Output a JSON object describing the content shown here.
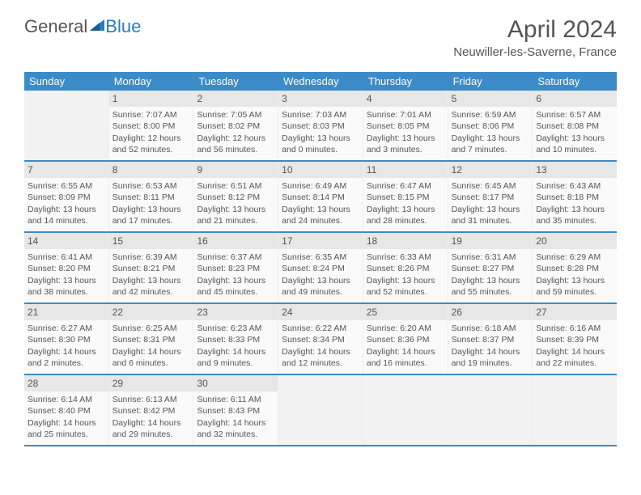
{
  "logo": {
    "text_general": "General",
    "text_blue": "Blue"
  },
  "title": "April 2024",
  "location": "Neuwiller-les-Saverne, France",
  "colors": {
    "header_bg": "#3b8bc9",
    "header_text": "#ffffff",
    "daynum_bg": "#e7e7e7",
    "border": "#3b8bc9",
    "cell_bg": "#fafafa",
    "empty_bg": "#f2f2f2",
    "text": "#555555"
  },
  "weekdays": [
    "Sunday",
    "Monday",
    "Tuesday",
    "Wednesday",
    "Thursday",
    "Friday",
    "Saturday"
  ],
  "cell_fontsize": 10.5,
  "daynum_fontsize": 12,
  "weekday_fontsize": 13,
  "weeks": [
    [
      {
        "empty": true
      },
      {
        "n": "1",
        "sunrise": "Sunrise: 7:07 AM",
        "sunset": "Sunset: 8:00 PM",
        "day1": "Daylight: 12 hours",
        "day2": "and 52 minutes."
      },
      {
        "n": "2",
        "sunrise": "Sunrise: 7:05 AM",
        "sunset": "Sunset: 8:02 PM",
        "day1": "Daylight: 12 hours",
        "day2": "and 56 minutes."
      },
      {
        "n": "3",
        "sunrise": "Sunrise: 7:03 AM",
        "sunset": "Sunset: 8:03 PM",
        "day1": "Daylight: 13 hours",
        "day2": "and 0 minutes."
      },
      {
        "n": "4",
        "sunrise": "Sunrise: 7:01 AM",
        "sunset": "Sunset: 8:05 PM",
        "day1": "Daylight: 13 hours",
        "day2": "and 3 minutes."
      },
      {
        "n": "5",
        "sunrise": "Sunrise: 6:59 AM",
        "sunset": "Sunset: 8:06 PM",
        "day1": "Daylight: 13 hours",
        "day2": "and 7 minutes."
      },
      {
        "n": "6",
        "sunrise": "Sunrise: 6:57 AM",
        "sunset": "Sunset: 8:08 PM",
        "day1": "Daylight: 13 hours",
        "day2": "and 10 minutes."
      }
    ],
    [
      {
        "n": "7",
        "sunrise": "Sunrise: 6:55 AM",
        "sunset": "Sunset: 8:09 PM",
        "day1": "Daylight: 13 hours",
        "day2": "and 14 minutes."
      },
      {
        "n": "8",
        "sunrise": "Sunrise: 6:53 AM",
        "sunset": "Sunset: 8:11 PM",
        "day1": "Daylight: 13 hours",
        "day2": "and 17 minutes."
      },
      {
        "n": "9",
        "sunrise": "Sunrise: 6:51 AM",
        "sunset": "Sunset: 8:12 PM",
        "day1": "Daylight: 13 hours",
        "day2": "and 21 minutes."
      },
      {
        "n": "10",
        "sunrise": "Sunrise: 6:49 AM",
        "sunset": "Sunset: 8:14 PM",
        "day1": "Daylight: 13 hours",
        "day2": "and 24 minutes."
      },
      {
        "n": "11",
        "sunrise": "Sunrise: 6:47 AM",
        "sunset": "Sunset: 8:15 PM",
        "day1": "Daylight: 13 hours",
        "day2": "and 28 minutes."
      },
      {
        "n": "12",
        "sunrise": "Sunrise: 6:45 AM",
        "sunset": "Sunset: 8:17 PM",
        "day1": "Daylight: 13 hours",
        "day2": "and 31 minutes."
      },
      {
        "n": "13",
        "sunrise": "Sunrise: 6:43 AM",
        "sunset": "Sunset: 8:18 PM",
        "day1": "Daylight: 13 hours",
        "day2": "and 35 minutes."
      }
    ],
    [
      {
        "n": "14",
        "sunrise": "Sunrise: 6:41 AM",
        "sunset": "Sunset: 8:20 PM",
        "day1": "Daylight: 13 hours",
        "day2": "and 38 minutes."
      },
      {
        "n": "15",
        "sunrise": "Sunrise: 6:39 AM",
        "sunset": "Sunset: 8:21 PM",
        "day1": "Daylight: 13 hours",
        "day2": "and 42 minutes."
      },
      {
        "n": "16",
        "sunrise": "Sunrise: 6:37 AM",
        "sunset": "Sunset: 8:23 PM",
        "day1": "Daylight: 13 hours",
        "day2": "and 45 minutes."
      },
      {
        "n": "17",
        "sunrise": "Sunrise: 6:35 AM",
        "sunset": "Sunset: 8:24 PM",
        "day1": "Daylight: 13 hours",
        "day2": "and 49 minutes."
      },
      {
        "n": "18",
        "sunrise": "Sunrise: 6:33 AM",
        "sunset": "Sunset: 8:26 PM",
        "day1": "Daylight: 13 hours",
        "day2": "and 52 minutes."
      },
      {
        "n": "19",
        "sunrise": "Sunrise: 6:31 AM",
        "sunset": "Sunset: 8:27 PM",
        "day1": "Daylight: 13 hours",
        "day2": "and 55 minutes."
      },
      {
        "n": "20",
        "sunrise": "Sunrise: 6:29 AM",
        "sunset": "Sunset: 8:28 PM",
        "day1": "Daylight: 13 hours",
        "day2": "and 59 minutes."
      }
    ],
    [
      {
        "n": "21",
        "sunrise": "Sunrise: 6:27 AM",
        "sunset": "Sunset: 8:30 PM",
        "day1": "Daylight: 14 hours",
        "day2": "and 2 minutes."
      },
      {
        "n": "22",
        "sunrise": "Sunrise: 6:25 AM",
        "sunset": "Sunset: 8:31 PM",
        "day1": "Daylight: 14 hours",
        "day2": "and 6 minutes."
      },
      {
        "n": "23",
        "sunrise": "Sunrise: 6:23 AM",
        "sunset": "Sunset: 8:33 PM",
        "day1": "Daylight: 14 hours",
        "day2": "and 9 minutes."
      },
      {
        "n": "24",
        "sunrise": "Sunrise: 6:22 AM",
        "sunset": "Sunset: 8:34 PM",
        "day1": "Daylight: 14 hours",
        "day2": "and 12 minutes."
      },
      {
        "n": "25",
        "sunrise": "Sunrise: 6:20 AM",
        "sunset": "Sunset: 8:36 PM",
        "day1": "Daylight: 14 hours",
        "day2": "and 16 minutes."
      },
      {
        "n": "26",
        "sunrise": "Sunrise: 6:18 AM",
        "sunset": "Sunset: 8:37 PM",
        "day1": "Daylight: 14 hours",
        "day2": "and 19 minutes."
      },
      {
        "n": "27",
        "sunrise": "Sunrise: 6:16 AM",
        "sunset": "Sunset: 8:39 PM",
        "day1": "Daylight: 14 hours",
        "day2": "and 22 minutes."
      }
    ],
    [
      {
        "n": "28",
        "sunrise": "Sunrise: 6:14 AM",
        "sunset": "Sunset: 8:40 PM",
        "day1": "Daylight: 14 hours",
        "day2": "and 25 minutes."
      },
      {
        "n": "29",
        "sunrise": "Sunrise: 6:13 AM",
        "sunset": "Sunset: 8:42 PM",
        "day1": "Daylight: 14 hours",
        "day2": "and 29 minutes."
      },
      {
        "n": "30",
        "sunrise": "Sunrise: 6:11 AM",
        "sunset": "Sunset: 8:43 PM",
        "day1": "Daylight: 14 hours",
        "day2": "and 32 minutes."
      },
      {
        "empty": true
      },
      {
        "empty": true
      },
      {
        "empty": true
      },
      {
        "empty": true
      }
    ]
  ]
}
